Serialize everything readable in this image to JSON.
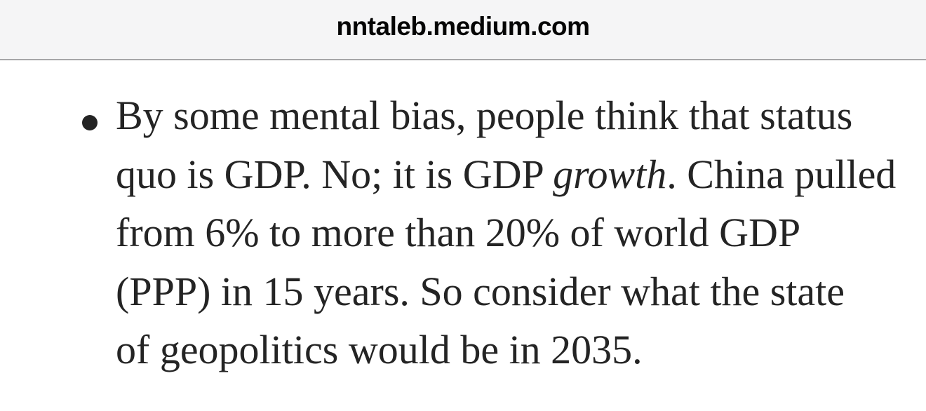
{
  "browser": {
    "url_bar": {
      "domain": "nntaleb.medium.com"
    }
  },
  "article": {
    "bullet_item": {
      "line1": "By some mental bias, people think that status",
      "line2_pre": "quo is GDP. No; it is GDP ",
      "line2_italic": "growth",
      "line2_post": ". China pulled",
      "line3": "from 6% to more than 20% of world GDP",
      "line4": "(PPP) in 15 years. So consider what the state",
      "line5": "of geopolitics would be in 2035.",
      "full_text": "By some mental bias, people think that status quo is GDP. No; it is GDP growth. China pulled from 6% to more than 20% of world GDP (PPP) in 15 years. So consider what the state of geopolitics would be in 2035."
    }
  },
  "colors": {
    "header_bg": "#f5f5f6",
    "header_border": "#a6a6a8",
    "url_text": "#050505",
    "body_bg": "#ffffff",
    "article_text": "#242424"
  }
}
